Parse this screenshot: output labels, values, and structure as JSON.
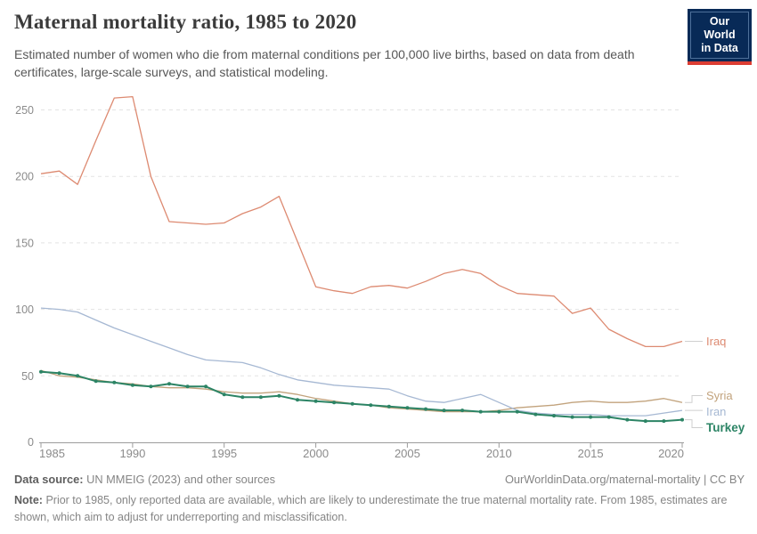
{
  "header": {
    "title": "Maternal mortality ratio, 1985 to 2020",
    "subtitle": "Estimated number of women who die from maternal conditions per 100,000 live births, based on data from death certificates, large-scale surveys, and statistical modeling.",
    "logo": {
      "line1": "Our World",
      "line2": "in Data"
    }
  },
  "chart_data": {
    "type": "line",
    "title": "Maternal mortality ratio, 1985 to 2020",
    "xlabel": "",
    "ylabel": "",
    "xlim": [
      1985,
      2020
    ],
    "ylim": [
      0,
      270
    ],
    "xticks": [
      1985,
      1990,
      1995,
      2000,
      2005,
      2010,
      2015,
      2020
    ],
    "yticks": [
      0,
      50,
      100,
      150,
      200,
      250
    ],
    "grid": "horizontal-dashed",
    "legend_position": "right-line-end-labels",
    "x": [
      1985,
      1986,
      1987,
      1988,
      1989,
      1990,
      1991,
      1992,
      1993,
      1994,
      1995,
      1996,
      1997,
      1998,
      1999,
      2000,
      2001,
      2002,
      2003,
      2004,
      2005,
      2006,
      2007,
      2008,
      2009,
      2010,
      2011,
      2012,
      2013,
      2014,
      2015,
      2016,
      2017,
      2018,
      2019,
      2020
    ],
    "series": [
      {
        "name": "Iraq",
        "color": "#dd8a71",
        "focused": false,
        "values": [
          202,
          204,
          194,
          227,
          259,
          260,
          200,
          166,
          165,
          164,
          165,
          172,
          177,
          185,
          151,
          117,
          114,
          112,
          117,
          118,
          116,
          121,
          127,
          130,
          127,
          118,
          112,
          111,
          110,
          97,
          101,
          85,
          78,
          72,
          72,
          76
        ]
      },
      {
        "name": "Syria",
        "color": "#c2a37d",
        "focused": false,
        "values": [
          54,
          50,
          49,
          47,
          45,
          44,
          42,
          41,
          41,
          40,
          38,
          37,
          37,
          38,
          36,
          33,
          31,
          29,
          28,
          26,
          25,
          24,
          23,
          23,
          23,
          24,
          26,
          27,
          28,
          30,
          31,
          30,
          30,
          31,
          33,
          30
        ]
      },
      {
        "name": "Iran",
        "color": "#a6b8d3",
        "focused": false,
        "values": [
          101,
          100,
          98,
          92,
          86,
          81,
          76,
          71,
          66,
          62,
          61,
          60,
          56,
          51,
          47,
          45,
          43,
          42,
          41,
          40,
          35,
          31,
          30,
          33,
          36,
          30,
          24,
          22,
          21,
          21,
          21,
          20,
          20,
          20,
          22,
          24
        ]
      },
      {
        "name": "Turkey",
        "color": "#2c8465",
        "focused": true,
        "values": [
          53,
          52,
          50,
          46,
          45,
          43,
          42,
          44,
          42,
          42,
          36,
          34,
          34,
          35,
          32,
          31,
          30,
          29,
          28,
          27,
          26,
          25,
          24,
          24,
          23,
          23,
          23,
          21,
          20,
          19,
          19,
          19,
          17,
          16,
          16,
          17
        ]
      }
    ]
  },
  "footer": {
    "source_label": "Data source:",
    "source_value": "UN MMEIG (2023) and other sources",
    "link": "OurWorldinData.org/maternal-mortality | CC BY",
    "note_label": "Note:",
    "note_value": "Prior to 1985, only reported data are available, which are likely to underestimate the true maternal mortality rate. From 1985, estimates are shown, which aim to adjust for underreporting and misclassification."
  }
}
